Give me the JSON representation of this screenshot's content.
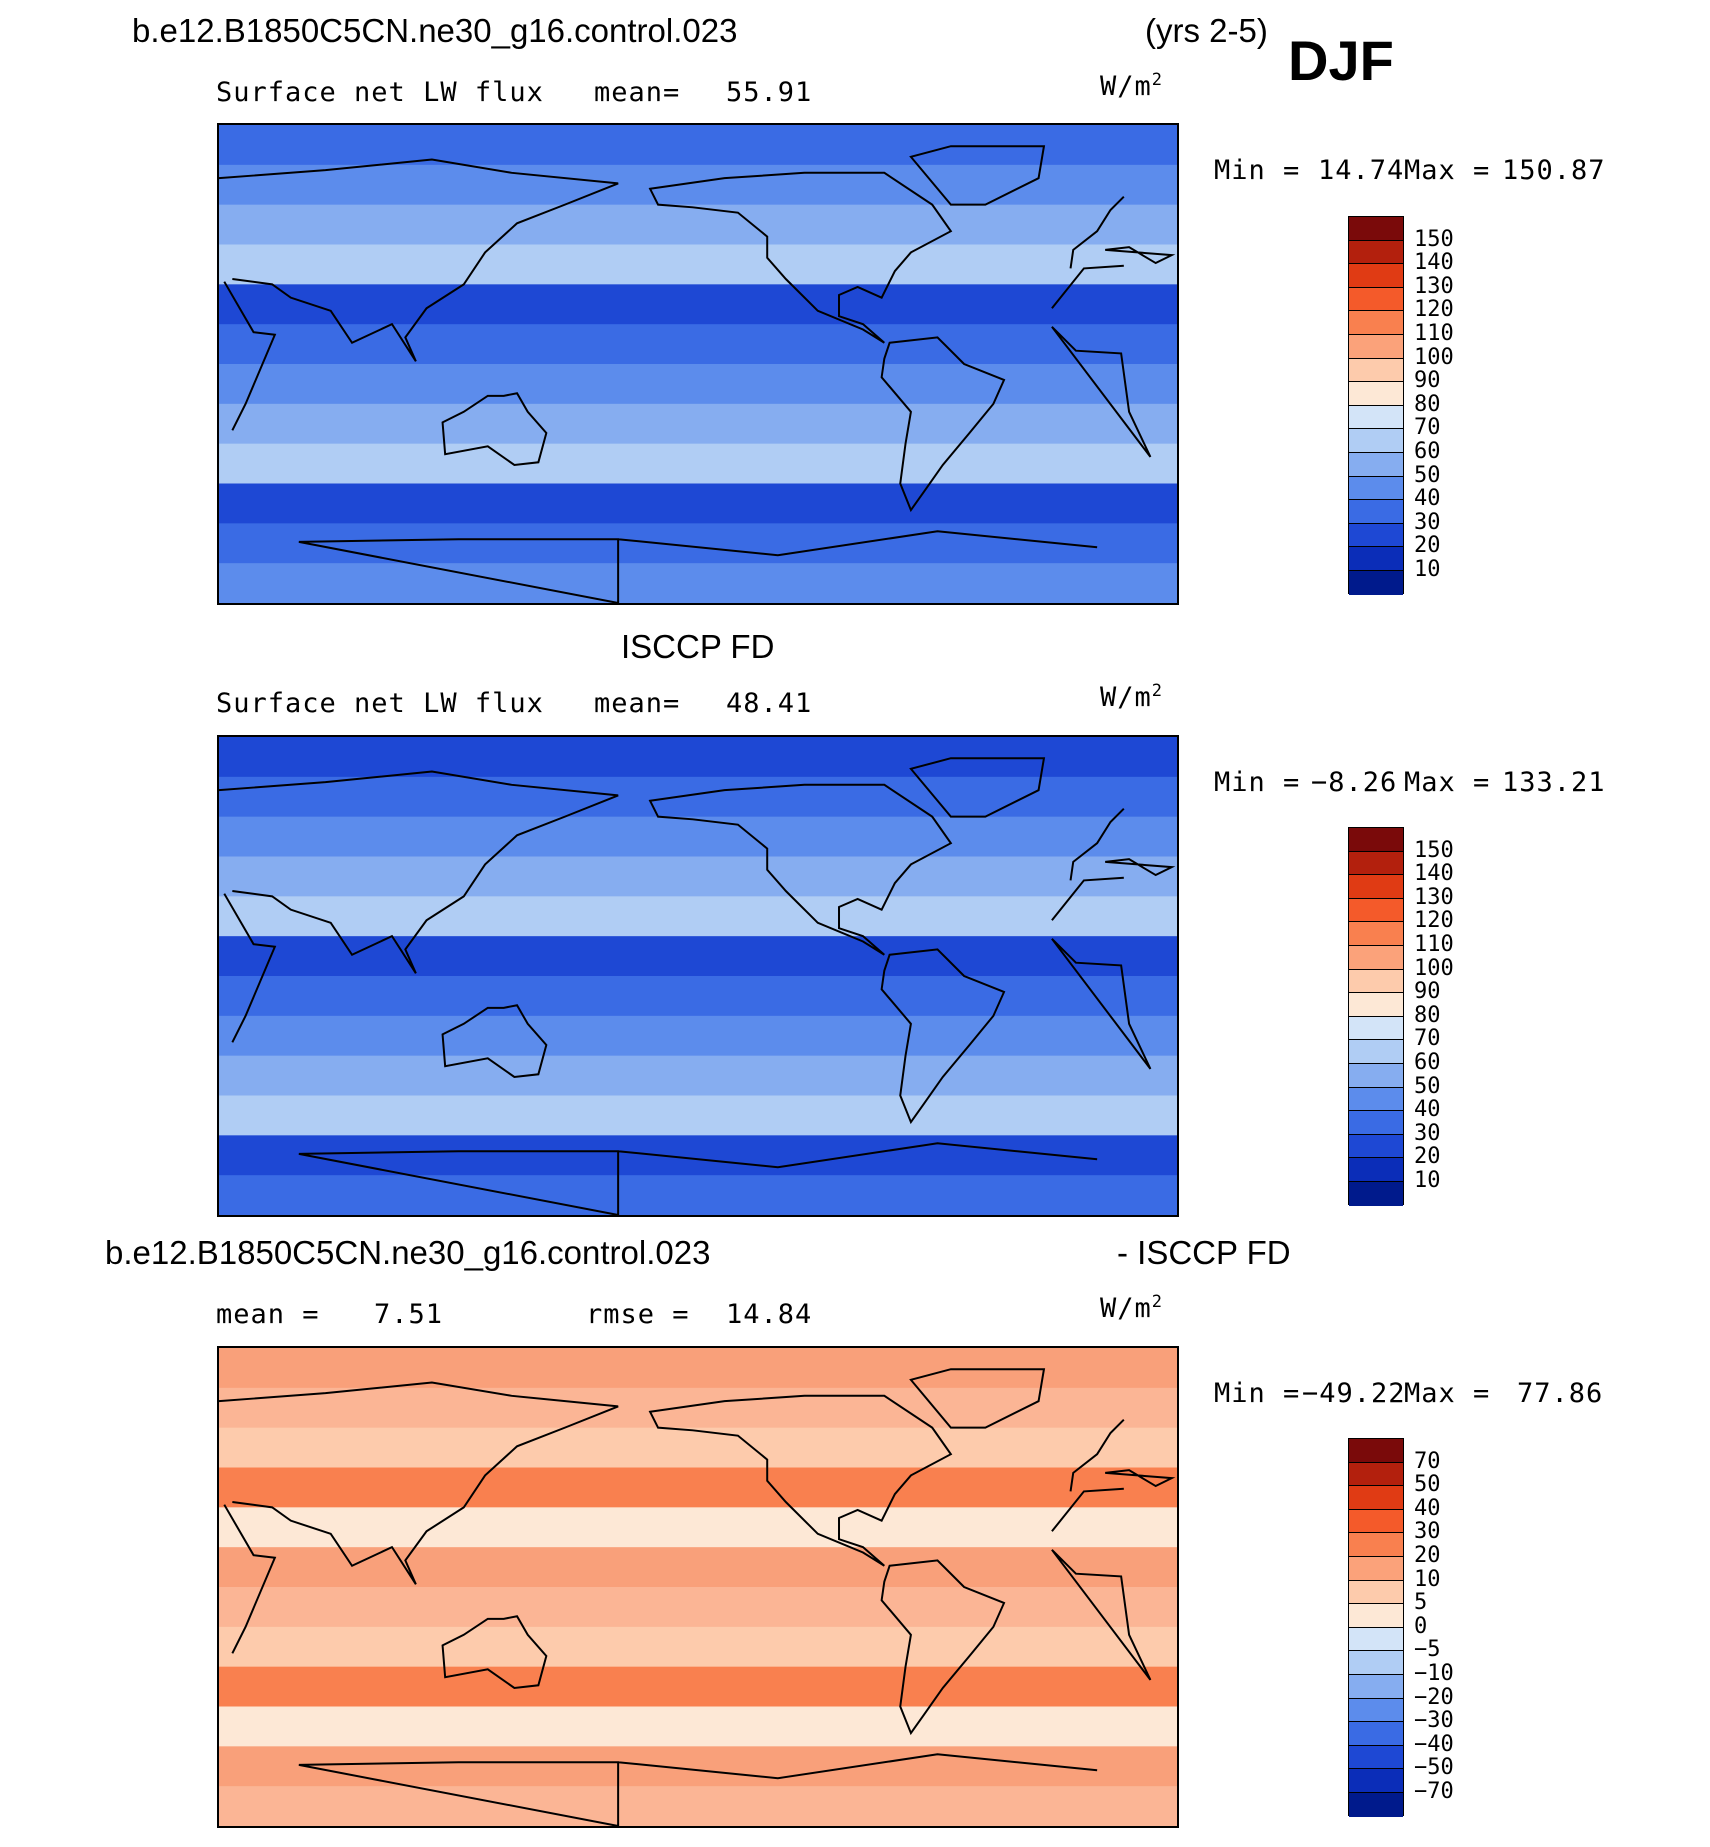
{
  "header": {
    "case_name": "b.e12.B1850C5CN.ne30_g16.control.023",
    "years": "(yrs 2-5)",
    "season": "DJF"
  },
  "panels": [
    {
      "id": "model",
      "title_above": "",
      "variable": "Surface net LW flux",
      "stat_label": "mean=",
      "stat_value": "55.91",
      "units": "W/m",
      "units_exp": "2",
      "min_label": "Min =",
      "min_value": "14.74",
      "max_label": "Max =",
      "max_value": "150.87",
      "levels": [
        "150",
        "140",
        "130",
        "120",
        "110",
        "100",
        "90",
        "80",
        "70",
        "60",
        "50",
        "40",
        "30",
        "20",
        "10"
      ],
      "colors": [
        "#7a0a0a",
        "#b3200d",
        "#e03b14",
        "#f45a2a",
        "#f9804f",
        "#fba27a",
        "#fdcbac",
        "#fde8d6",
        "#d3e4f8",
        "#b0cdf4",
        "#86adf0",
        "#5c8cec",
        "#3a6be4",
        "#1e48d4",
        "#0b2db8",
        "#001a8c"
      ],
      "fill_palette": [
        "#3a6be4",
        "#5c8cec",
        "#86adf0",
        "#b0cdf4",
        "#1e48d4"
      ]
    },
    {
      "id": "obs",
      "title_above": "ISCCP FD",
      "variable": "Surface net LW flux",
      "stat_label": "mean=",
      "stat_value": "48.41",
      "units": "W/m",
      "units_exp": "2",
      "min_label": "Min =",
      "min_value": "−8.26",
      "max_label": "Max =",
      "max_value": "133.21",
      "levels": [
        "150",
        "140",
        "130",
        "120",
        "110",
        "100",
        "90",
        "80",
        "70",
        "60",
        "50",
        "40",
        "30",
        "20",
        "10"
      ],
      "colors": [
        "#7a0a0a",
        "#b3200d",
        "#e03b14",
        "#f45a2a",
        "#f9804f",
        "#fba27a",
        "#fdcbac",
        "#fde8d6",
        "#d3e4f8",
        "#b0cdf4",
        "#86adf0",
        "#5c8cec",
        "#3a6be4",
        "#1e48d4",
        "#0b2db8",
        "#001a8c"
      ],
      "fill_palette": [
        "#1e48d4",
        "#3a6be4",
        "#5c8cec",
        "#86adf0",
        "#b0cdf4"
      ]
    },
    {
      "id": "diff",
      "title_above": "b.e12.B1850C5CN.ne30_g16.control.023",
      "title_above_right": "- ISCCP FD",
      "variable": "",
      "stat_label": "mean =",
      "stat_value": "7.51",
      "stat2_label": "rmse =",
      "stat2_value": "14.84",
      "units": "W/m",
      "units_exp": "2",
      "min_label": "Min =",
      "min_value": "−49.22",
      "max_label": "Max =",
      "max_value": "77.86",
      "levels": [
        "70",
        "50",
        "40",
        "30",
        "20",
        "10",
        "5",
        "0",
        "−5",
        "−10",
        "−20",
        "−30",
        "−40",
        "−50",
        "−70"
      ],
      "colors": [
        "#7a0a0a",
        "#b3200d",
        "#e03b14",
        "#f45a2a",
        "#f9804f",
        "#fba27a",
        "#fdcbac",
        "#fde8d6",
        "#d3e4f8",
        "#b0cdf4",
        "#86adf0",
        "#5c8cec",
        "#3a6be4",
        "#1e48d4",
        "#0b2db8",
        "#001a8c"
      ],
      "fill_palette": [
        "#f9a07a",
        "#fbb595",
        "#fdcbac",
        "#f9804f",
        "#fde8d6"
      ]
    }
  ],
  "chart_data": [
    {
      "type": "heatmap",
      "title": "b.e12.B1850C5CN.ne30_g16.control.023 (yrs 2-5) DJF",
      "variable": "Surface net LW flux",
      "units": "W/m2",
      "mean": 55.91,
      "min": 14.74,
      "max": 150.87,
      "contour_levels": [
        10,
        20,
        30,
        40,
        50,
        60,
        70,
        80,
        90,
        100,
        110,
        120,
        130,
        140,
        150
      ]
    },
    {
      "type": "heatmap",
      "title": "ISCCP FD",
      "variable": "Surface net LW flux",
      "units": "W/m2",
      "mean": 48.41,
      "min": -8.26,
      "max": 133.21,
      "contour_levels": [
        10,
        20,
        30,
        40,
        50,
        60,
        70,
        80,
        90,
        100,
        110,
        120,
        130,
        140,
        150
      ]
    },
    {
      "type": "heatmap",
      "title": "b.e12.B1850C5CN.ne30_g16.control.023 - ISCCP FD",
      "units": "W/m2",
      "mean": 7.51,
      "rmse": 14.84,
      "min": -49.22,
      "max": 77.86,
      "contour_levels": [
        -70,
        -50,
        -40,
        -30,
        -20,
        -10,
        -5,
        0,
        5,
        10,
        20,
        30,
        40,
        50,
        70
      ]
    }
  ]
}
